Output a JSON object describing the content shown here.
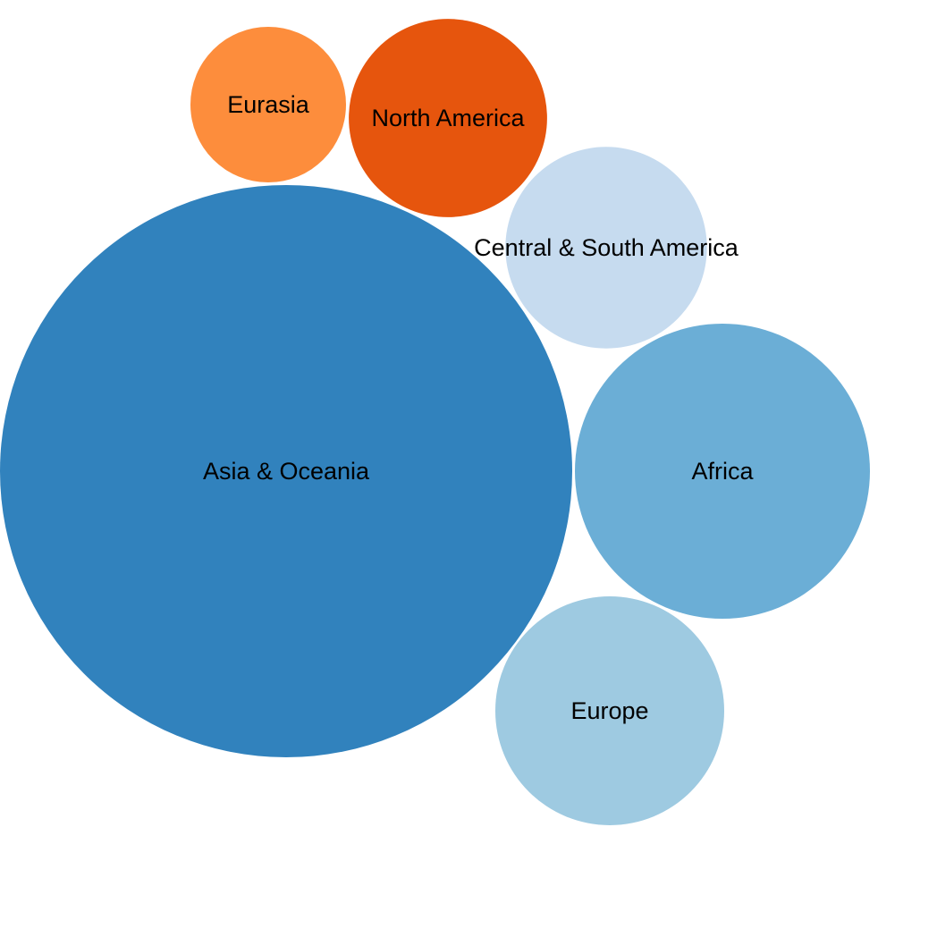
{
  "chart_data": {
    "type": "bubble",
    "title": "",
    "legend": "none",
    "series": [
      {
        "name": "Asia & Oceania",
        "value": 100,
        "color": "#3182bd"
      },
      {
        "name": "Africa",
        "value": 26.6,
        "color": "#6baed6"
      },
      {
        "name": "Europe",
        "value": 16,
        "color": "#9ecae1"
      },
      {
        "name": "Central & South America",
        "value": 12.4,
        "color": "#c6dbef"
      },
      {
        "name": "North America",
        "value": 12,
        "color": "#e6550d"
      },
      {
        "name": "Eurasia",
        "value": 7.4,
        "color": "#fd8d3c"
      }
    ]
  }
}
